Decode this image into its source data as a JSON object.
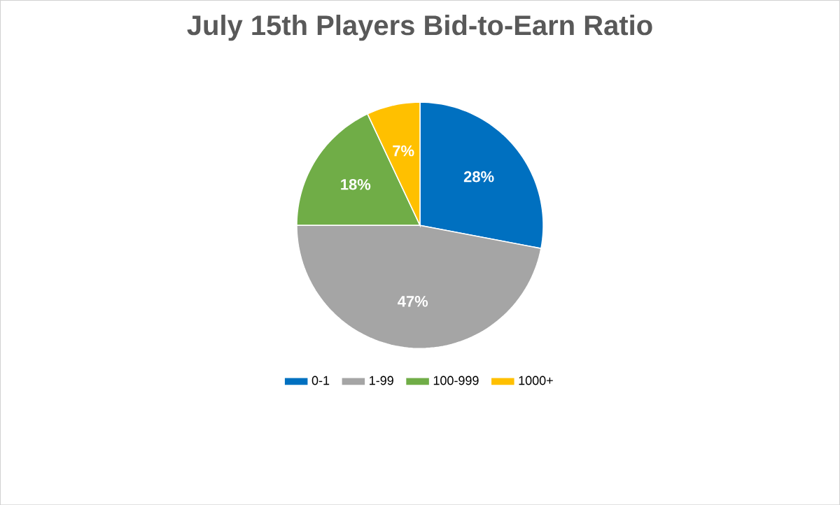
{
  "chart_data": {
    "type": "pie",
    "title": "July 15th Players Bid-to-Earn Ratio",
    "categories": [
      "0-1",
      "1-99",
      "100-999",
      "1000+"
    ],
    "values": [
      28,
      47,
      18,
      7
    ],
    "colors": [
      "#0070c0",
      "#a5a5a5",
      "#70ad47",
      "#ffc000"
    ],
    "value_labels": [
      "28%",
      "47%",
      "18%",
      "7%"
    ],
    "legend": "bottom"
  }
}
